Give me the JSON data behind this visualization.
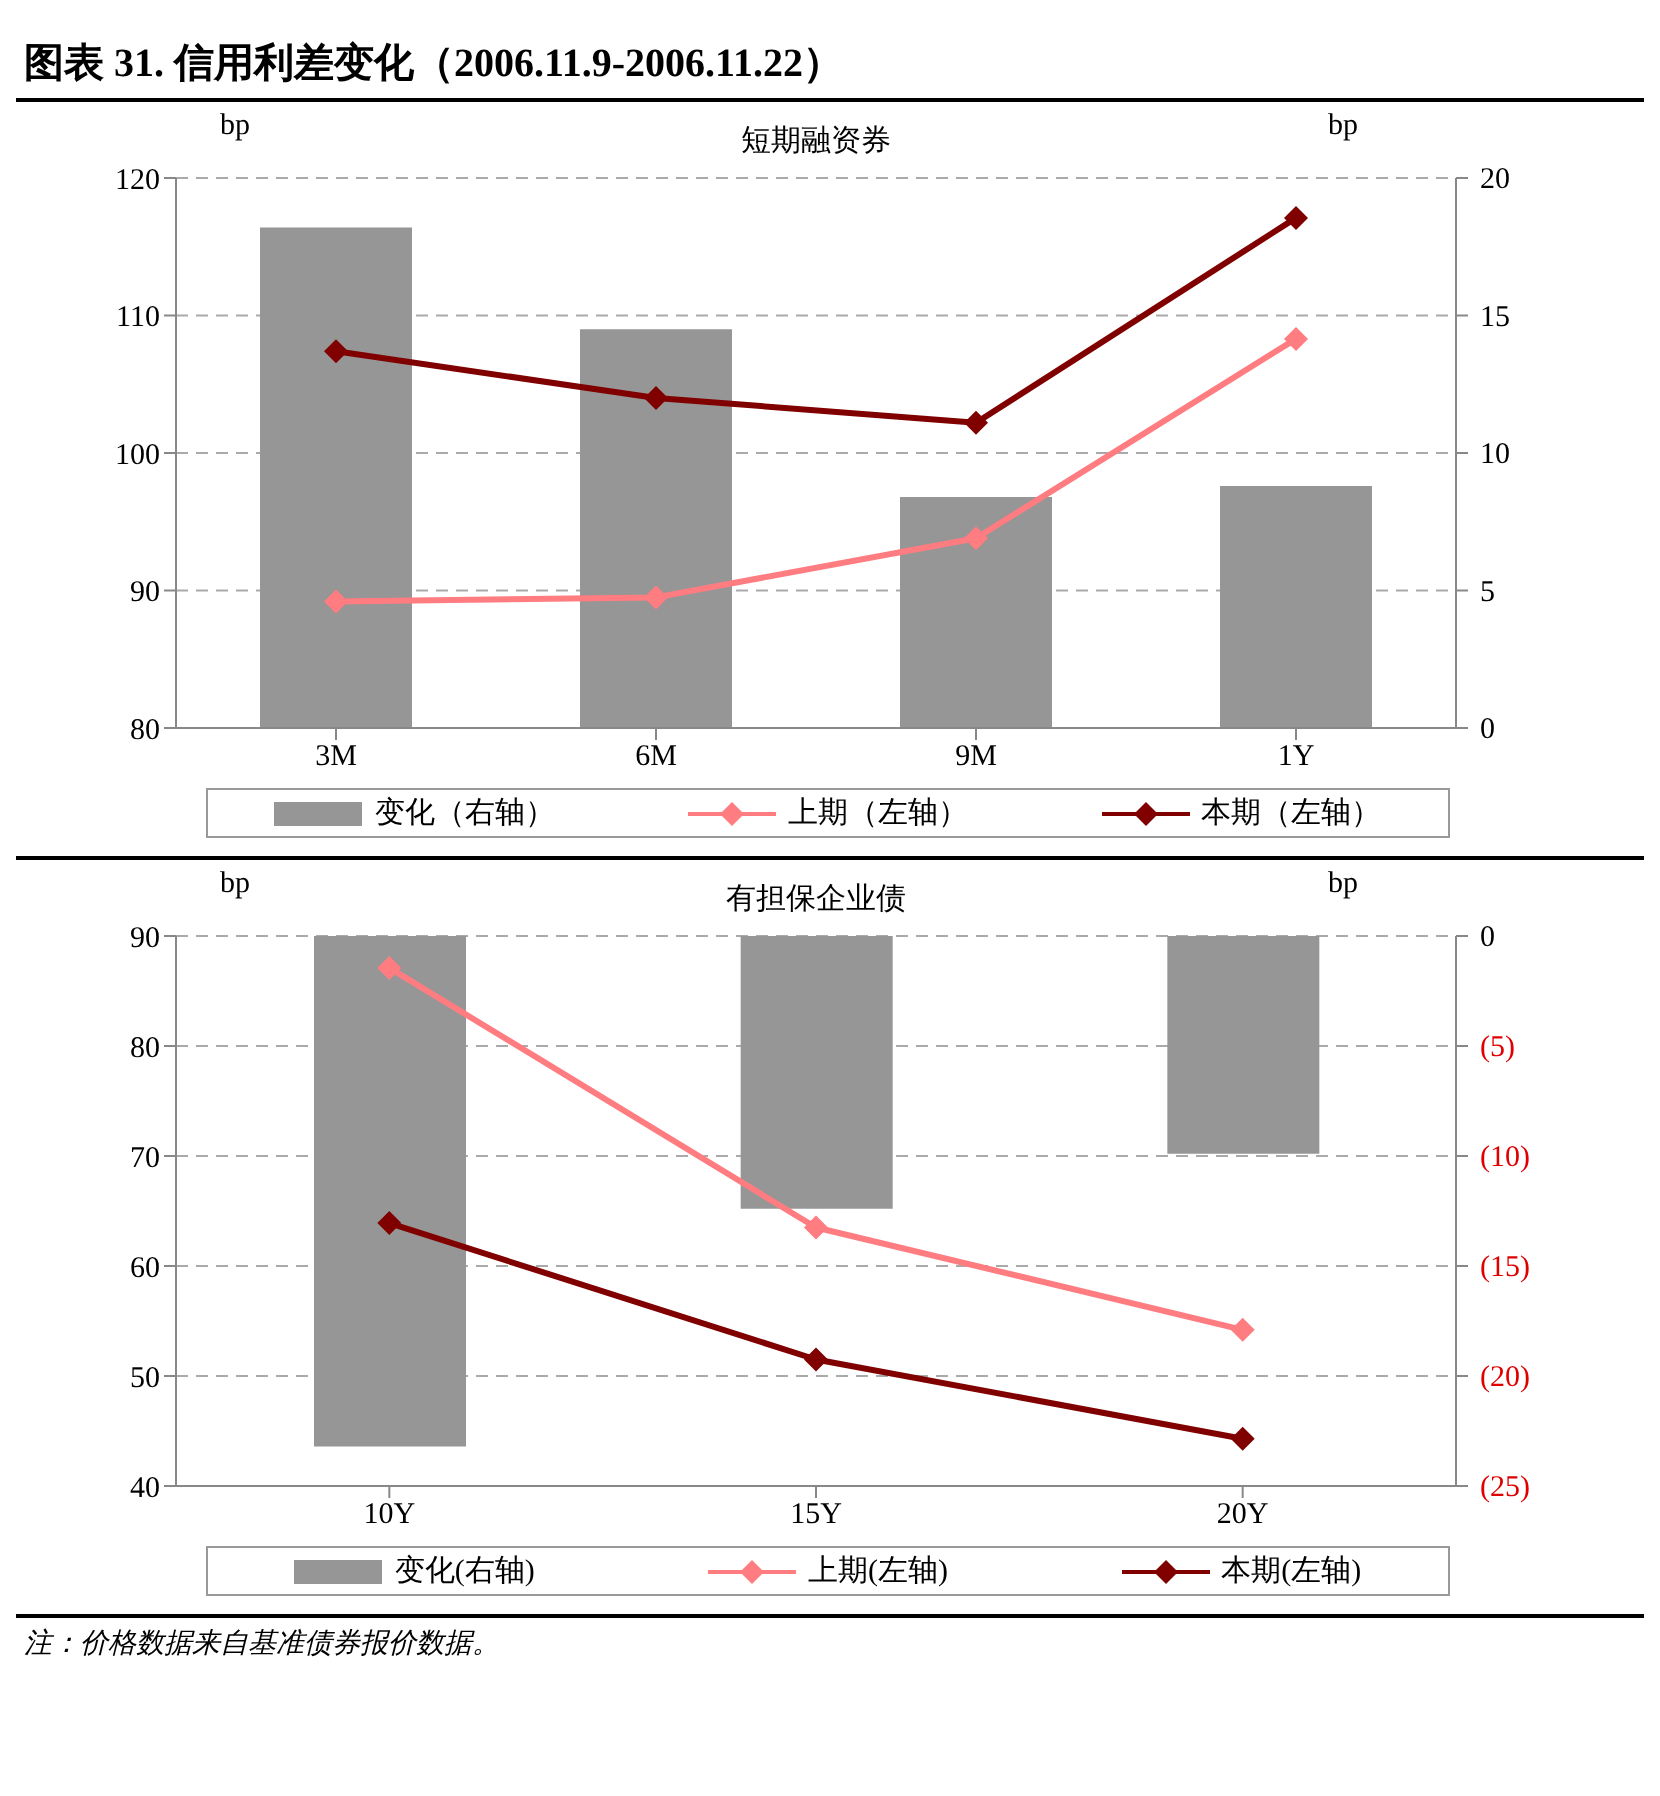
{
  "chart_data": [
    {
      "type": "bar",
      "title": "图表 31. 信用利差变化（2006.11.9-2006.11.22）",
      "subtitle": "短期融资券",
      "ylabel": "bp",
      "y2label": "bp",
      "categories": [
        "3M",
        "6M",
        "9M",
        "1Y"
      ],
      "series": [
        {
          "name": "变化（右轴）",
          "axis": "y2",
          "color": "#969696",
          "values": [
            18.2,
            14.5,
            8.4,
            8.8
          ]
        },
        {
          "name": "上期（左轴）",
          "type": "line",
          "color": "#ff7c80",
          "values": [
            89.2,
            89.5,
            93.8,
            108.3
          ]
        },
        {
          "name": "本期（左轴）",
          "type": "line",
          "color": "#800000",
          "values": [
            107.4,
            104.0,
            102.2,
            117.1
          ]
        }
      ],
      "ylim": [
        80,
        120
      ],
      "yticks": [
        80,
        90,
        100,
        110,
        120
      ],
      "y2lim": [
        0,
        20
      ],
      "y2ticks": [
        0,
        5,
        10,
        15,
        20
      ],
      "grid": "y",
      "legend": "bottom",
      "marker": "diamond"
    },
    {
      "type": "bar",
      "subtitle": "有担保企业债",
      "ylabel": "bp",
      "y2label": "bp",
      "categories": [
        "10Y",
        "15Y",
        "20Y"
      ],
      "series": [
        {
          "name": "变化(右轴)",
          "axis": "y2",
          "color": "#969696",
          "values": [
            -23.2,
            -12.4,
            -9.9
          ]
        },
        {
          "name": "上期(左轴)",
          "type": "line",
          "color": "#ff7c80",
          "values": [
            87.1,
            63.5,
            54.2
          ]
        },
        {
          "name": "本期(左轴)",
          "type": "line",
          "color": "#800000",
          "values": [
            63.9,
            51.5,
            44.3
          ]
        }
      ],
      "ylim": [
        40,
        90
      ],
      "yticks": [
        40,
        50,
        60,
        70,
        80,
        90
      ],
      "y2lim": [
        -25,
        0
      ],
      "y2ticks": [
        {
          "value": -25,
          "label": "(25)"
        },
        {
          "value": -20,
          "label": "(20)"
        },
        {
          "value": -15,
          "label": "(15)"
        },
        {
          "value": -10,
          "label": "(10)"
        },
        {
          "value": -5,
          "label": "(5)"
        },
        0
      ],
      "grid": "y",
      "legend": "bottom",
      "marker": "diamond",
      "annotations": [
        "注：价格数据来自基准债券报价数据。"
      ]
    }
  ]
}
